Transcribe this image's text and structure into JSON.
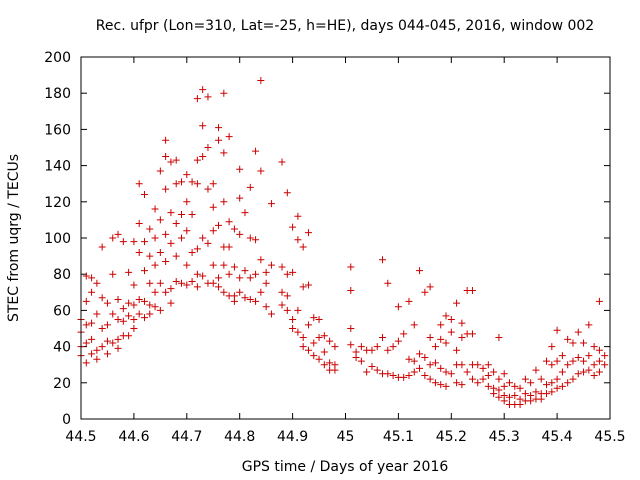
{
  "chart_data": {
    "type": "scatter",
    "title": "Rec. ufpr (Lon=310, Lat=-25, h=HE), days 044-045, 2016, window 002",
    "xlabel": "GPS time / Days of year 2016",
    "ylabel": "STEC from uqrg / TECUs",
    "xlim": [
      44.5,
      45.5
    ],
    "ylim": [
      0,
      200
    ],
    "x_ticks": [
      "44.5",
      "44.6",
      "44.7",
      "44.8",
      "44.9",
      "45",
      "45.1",
      "45.2",
      "45.3",
      "45.4",
      "45.5"
    ],
    "y_ticks": [
      "0",
      "20",
      "40",
      "60",
      "80",
      "100",
      "120",
      "140",
      "160",
      "180",
      "200"
    ],
    "marker": "plus",
    "color": "#cc0000",
    "grid": false,
    "legend": "none",
    "points": [
      [
        44.5,
        55
      ],
      [
        44.5,
        48
      ],
      [
        44.5,
        40
      ],
      [
        44.5,
        35
      ],
      [
        44.51,
        79
      ],
      [
        44.51,
        65
      ],
      [
        44.51,
        52
      ],
      [
        44.51,
        42
      ],
      [
        44.51,
        31
      ],
      [
        44.52,
        78
      ],
      [
        44.52,
        70
      ],
      [
        44.52,
        53
      ],
      [
        44.52,
        44
      ],
      [
        44.52,
        36
      ],
      [
        44.53,
        75
      ],
      [
        44.53,
        58
      ],
      [
        44.53,
        38
      ],
      [
        44.53,
        33
      ],
      [
        44.54,
        95
      ],
      [
        44.54,
        67
      ],
      [
        44.54,
        50
      ],
      [
        44.54,
        40
      ],
      [
        44.55,
        64
      ],
      [
        44.55,
        52
      ],
      [
        44.55,
        43
      ],
      [
        44.55,
        36
      ],
      [
        44.56,
        100
      ],
      [
        44.56,
        80
      ],
      [
        44.56,
        58
      ],
      [
        44.56,
        42
      ],
      [
        44.57,
        102
      ],
      [
        44.57,
        66
      ],
      [
        44.57,
        55
      ],
      [
        44.57,
        44
      ],
      [
        44.57,
        39
      ],
      [
        44.58,
        98
      ],
      [
        44.58,
        61
      ],
      [
        44.58,
        54
      ],
      [
        44.58,
        46
      ],
      [
        44.59,
        81
      ],
      [
        44.59,
        64
      ],
      [
        44.59,
        57
      ],
      [
        44.59,
        46
      ],
      [
        44.6,
        98
      ],
      [
        44.6,
        74
      ],
      [
        44.6,
        63
      ],
      [
        44.6,
        55
      ],
      [
        44.6,
        50
      ],
      [
        44.61,
        130
      ],
      [
        44.61,
        108
      ],
      [
        44.61,
        92
      ],
      [
        44.61,
        66
      ],
      [
        44.61,
        58
      ],
      [
        44.62,
        124
      ],
      [
        44.62,
        98
      ],
      [
        44.62,
        82
      ],
      [
        44.62,
        65
      ],
      [
        44.62,
        56
      ],
      [
        44.63,
        105
      ],
      [
        44.63,
        90
      ],
      [
        44.63,
        75
      ],
      [
        44.63,
        63
      ],
      [
        44.63,
        58
      ],
      [
        44.64,
        116
      ],
      [
        44.64,
        100
      ],
      [
        44.64,
        85
      ],
      [
        44.64,
        70
      ],
      [
        44.64,
        62
      ],
      [
        44.65,
        137
      ],
      [
        44.65,
        110
      ],
      [
        44.65,
        92
      ],
      [
        44.65,
        75
      ],
      [
        44.65,
        60
      ],
      [
        44.66,
        154
      ],
      [
        44.66,
        145
      ],
      [
        44.66,
        127
      ],
      [
        44.66,
        102
      ],
      [
        44.66,
        87
      ],
      [
        44.66,
        70
      ],
      [
        44.67,
        142
      ],
      [
        44.67,
        114
      ],
      [
        44.67,
        97
      ],
      [
        44.67,
        72
      ],
      [
        44.67,
        64
      ],
      [
        44.68,
        143
      ],
      [
        44.68,
        130
      ],
      [
        44.68,
        108
      ],
      [
        44.68,
        90
      ],
      [
        44.68,
        76
      ],
      [
        44.69,
        131
      ],
      [
        44.69,
        113
      ],
      [
        44.69,
        100
      ],
      [
        44.69,
        75
      ],
      [
        44.7,
        135
      ],
      [
        44.7,
        120
      ],
      [
        44.7,
        104
      ],
      [
        44.7,
        85
      ],
      [
        44.7,
        74
      ],
      [
        44.71,
        131
      ],
      [
        44.71,
        113
      ],
      [
        44.71,
        92
      ],
      [
        44.71,
        76
      ],
      [
        44.72,
        177
      ],
      [
        44.72,
        143
      ],
      [
        44.72,
        130
      ],
      [
        44.72,
        94
      ],
      [
        44.72,
        80
      ],
      [
        44.72,
        73
      ],
      [
        44.73,
        182
      ],
      [
        44.73,
        162
      ],
      [
        44.73,
        145
      ],
      [
        44.73,
        100
      ],
      [
        44.73,
        79
      ],
      [
        44.74,
        178
      ],
      [
        44.74,
        150
      ],
      [
        44.74,
        127
      ],
      [
        44.74,
        97
      ],
      [
        44.74,
        75
      ],
      [
        44.75,
        130
      ],
      [
        44.75,
        117
      ],
      [
        44.75,
        104
      ],
      [
        44.75,
        85
      ],
      [
        44.75,
        75
      ],
      [
        44.76,
        161
      ],
      [
        44.76,
        154
      ],
      [
        44.76,
        107
      ],
      [
        44.76,
        78
      ],
      [
        44.76,
        73
      ],
      [
        44.77,
        180
      ],
      [
        44.77,
        147
      ],
      [
        44.77,
        120
      ],
      [
        44.77,
        95
      ],
      [
        44.77,
        85
      ],
      [
        44.77,
        70
      ],
      [
        44.78,
        156
      ],
      [
        44.78,
        109
      ],
      [
        44.78,
        95
      ],
      [
        44.78,
        80
      ],
      [
        44.78,
        68
      ],
      [
        44.79,
        105
      ],
      [
        44.79,
        84
      ],
      [
        44.79,
        68
      ],
      [
        44.79,
        65
      ],
      [
        44.8,
        138
      ],
      [
        44.8,
        122
      ],
      [
        44.8,
        102
      ],
      [
        44.8,
        78
      ],
      [
        44.8,
        70
      ],
      [
        44.81,
        114
      ],
      [
        44.81,
        82
      ],
      [
        44.81,
        67
      ],
      [
        44.82,
        128
      ],
      [
        44.82,
        100
      ],
      [
        44.82,
        78
      ],
      [
        44.82,
        66
      ],
      [
        44.83,
        148
      ],
      [
        44.83,
        99
      ],
      [
        44.83,
        80
      ],
      [
        44.83,
        65
      ],
      [
        44.84,
        187
      ],
      [
        44.84,
        137
      ],
      [
        44.84,
        88
      ],
      [
        44.84,
        70
      ],
      [
        44.85,
        81
      ],
      [
        44.85,
        75
      ],
      [
        44.85,
        62
      ],
      [
        44.86,
        119
      ],
      [
        44.86,
        85
      ],
      [
        44.86,
        58
      ],
      [
        44.88,
        142
      ],
      [
        44.88,
        84
      ],
      [
        44.88,
        70
      ],
      [
        44.88,
        63
      ],
      [
        44.89,
        125
      ],
      [
        44.89,
        80
      ],
      [
        44.89,
        68
      ],
      [
        44.89,
        60
      ],
      [
        44.9,
        106
      ],
      [
        44.9,
        81
      ],
      [
        44.9,
        55
      ],
      [
        44.9,
        50
      ],
      [
        44.91,
        112
      ],
      [
        44.91,
        99
      ],
      [
        44.91,
        60
      ],
      [
        44.91,
        48
      ],
      [
        44.92,
        95
      ],
      [
        44.92,
        73
      ],
      [
        44.92,
        45
      ],
      [
        44.92,
        40
      ],
      [
        44.93,
        103
      ],
      [
        44.93,
        74
      ],
      [
        44.93,
        52
      ],
      [
        44.93,
        38
      ],
      [
        44.94,
        56
      ],
      [
        44.94,
        42
      ],
      [
        44.94,
        35
      ],
      [
        44.95,
        55
      ],
      [
        44.95,
        45
      ],
      [
        44.95,
        33
      ],
      [
        44.96,
        46
      ],
      [
        44.96,
        37
      ],
      [
        44.96,
        30
      ],
      [
        44.97,
        43
      ],
      [
        44.97,
        31
      ],
      [
        44.97,
        27
      ],
      [
        44.98,
        40
      ],
      [
        44.98,
        30
      ],
      [
        44.98,
        27
      ],
      [
        45.01,
        84
      ],
      [
        45.01,
        71
      ],
      [
        45.01,
        50
      ],
      [
        45.01,
        41
      ],
      [
        45.02,
        37
      ],
      [
        45.02,
        34
      ],
      [
        45.03,
        40
      ],
      [
        45.03,
        32
      ],
      [
        45.04,
        38
      ],
      [
        45.04,
        26
      ],
      [
        45.05,
        38
      ],
      [
        45.05,
        29
      ],
      [
        45.06,
        40
      ],
      [
        45.06,
        27
      ],
      [
        45.07,
        88
      ],
      [
        45.07,
        45
      ],
      [
        45.07,
        25
      ],
      [
        45.08,
        75
      ],
      [
        45.08,
        38
      ],
      [
        45.08,
        25
      ],
      [
        45.09,
        40
      ],
      [
        45.09,
        24
      ],
      [
        45.1,
        62
      ],
      [
        45.1,
        43
      ],
      [
        45.1,
        23
      ],
      [
        45.11,
        47
      ],
      [
        45.11,
        23
      ],
      [
        45.12,
        65
      ],
      [
        45.12,
        33
      ],
      [
        45.12,
        24
      ],
      [
        45.13,
        52
      ],
      [
        45.13,
        32
      ],
      [
        45.13,
        26
      ],
      [
        45.14,
        82
      ],
      [
        45.14,
        36
      ],
      [
        45.14,
        28
      ],
      [
        45.15,
        70
      ],
      [
        45.15,
        34
      ],
      [
        45.15,
        24
      ],
      [
        45.16,
        73
      ],
      [
        45.16,
        45
      ],
      [
        45.16,
        30
      ],
      [
        45.16,
        22
      ],
      [
        45.17,
        40
      ],
      [
        45.17,
        31
      ],
      [
        45.17,
        20
      ],
      [
        45.18,
        52
      ],
      [
        45.18,
        44
      ],
      [
        45.18,
        28
      ],
      [
        45.18,
        19
      ],
      [
        45.19,
        57
      ],
      [
        45.19,
        42
      ],
      [
        45.19,
        26
      ],
      [
        45.19,
        18
      ],
      [
        45.2,
        55
      ],
      [
        45.2,
        48
      ],
      [
        45.2,
        25
      ],
      [
        45.21,
        64
      ],
      [
        45.21,
        38
      ],
      [
        45.21,
        30
      ],
      [
        45.21,
        20
      ],
      [
        45.22,
        53
      ],
      [
        45.22,
        45
      ],
      [
        45.22,
        30
      ],
      [
        45.22,
        19
      ],
      [
        45.23,
        71
      ],
      [
        45.23,
        47
      ],
      [
        45.23,
        26
      ],
      [
        45.24,
        71
      ],
      [
        45.24,
        47
      ],
      [
        45.24,
        30
      ],
      [
        45.24,
        22
      ],
      [
        45.25,
        30
      ],
      [
        45.25,
        20
      ],
      [
        45.26,
        28
      ],
      [
        45.26,
        22
      ],
      [
        45.27,
        30
      ],
      [
        45.27,
        24
      ],
      [
        45.27,
        18
      ],
      [
        45.28,
        26
      ],
      [
        45.28,
        17
      ],
      [
        45.28,
        14
      ],
      [
        45.29,
        45
      ],
      [
        45.29,
        22
      ],
      [
        45.29,
        16
      ],
      [
        45.29,
        12
      ],
      [
        45.3,
        25
      ],
      [
        45.3,
        18
      ],
      [
        45.3,
        13
      ],
      [
        45.3,
        10
      ],
      [
        45.31,
        20
      ],
      [
        45.31,
        12
      ],
      [
        45.31,
        8
      ],
      [
        45.32,
        18
      ],
      [
        45.32,
        13
      ],
      [
        45.32,
        8
      ],
      [
        45.33,
        17
      ],
      [
        45.33,
        11
      ],
      [
        45.33,
        8
      ],
      [
        45.34,
        22
      ],
      [
        45.34,
        14
      ],
      [
        45.34,
        10
      ],
      [
        45.35,
        20
      ],
      [
        45.35,
        13
      ],
      [
        45.35,
        10
      ],
      [
        45.36,
        27
      ],
      [
        45.36,
        15
      ],
      [
        45.36,
        11
      ],
      [
        45.37,
        22
      ],
      [
        45.37,
        14
      ],
      [
        45.37,
        11
      ],
      [
        45.38,
        32
      ],
      [
        45.38,
        19
      ],
      [
        45.38,
        14
      ],
      [
        45.39,
        40
      ],
      [
        45.39,
        30
      ],
      [
        45.39,
        20
      ],
      [
        45.39,
        15
      ],
      [
        45.4,
        49
      ],
      [
        45.4,
        32
      ],
      [
        45.4,
        22
      ],
      [
        45.4,
        17
      ],
      [
        45.41,
        35
      ],
      [
        45.41,
        26
      ],
      [
        45.41,
        18
      ],
      [
        45.42,
        44
      ],
      [
        45.42,
        30
      ],
      [
        45.42,
        20
      ],
      [
        45.43,
        42
      ],
      [
        45.43,
        32
      ],
      [
        45.43,
        22
      ],
      [
        45.44,
        48
      ],
      [
        45.44,
        34
      ],
      [
        45.44,
        25
      ],
      [
        45.45,
        42
      ],
      [
        45.45,
        32
      ],
      [
        45.45,
        26
      ],
      [
        45.46,
        52
      ],
      [
        45.46,
        35
      ],
      [
        45.46,
        27
      ],
      [
        45.47,
        40
      ],
      [
        45.47,
        30
      ],
      [
        45.47,
        24
      ],
      [
        45.48,
        65
      ],
      [
        45.48,
        38
      ],
      [
        45.48,
        32
      ],
      [
        45.48,
        26
      ],
      [
        45.49,
        35
      ],
      [
        45.49,
        30
      ]
    ]
  }
}
